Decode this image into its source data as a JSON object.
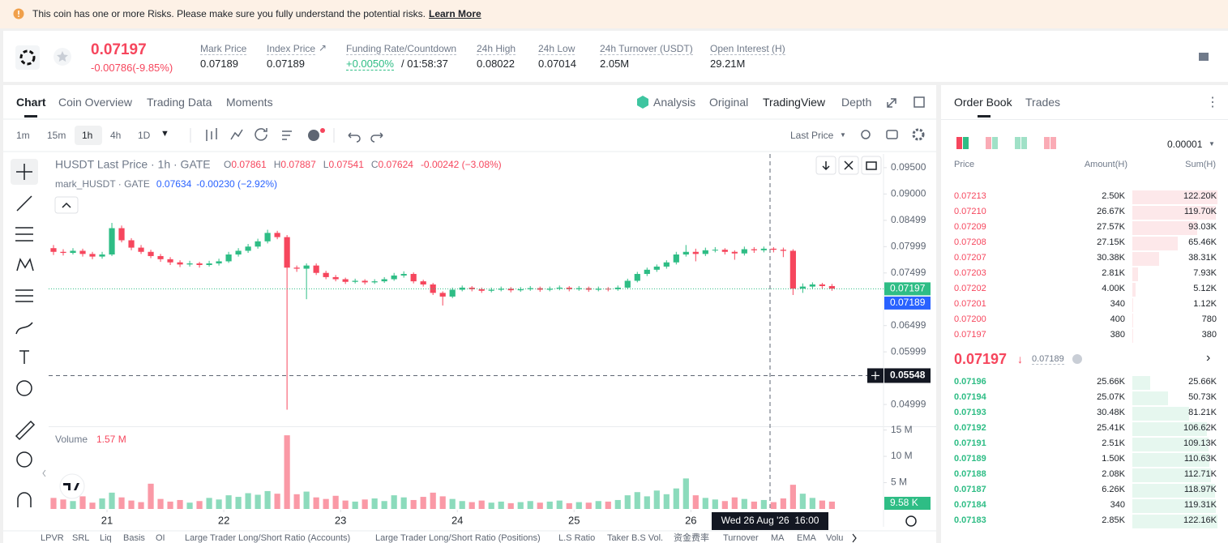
{
  "banner": {
    "text": "This coin has one or more Risks. Please make sure you fully understand the potential risks.",
    "link": "Learn More"
  },
  "ticker": {
    "price": "0.07197",
    "change": "-0.00786(-9.85%)",
    "stats": [
      {
        "label": "Mark Price",
        "value": "0.07189"
      },
      {
        "label": "Index Price",
        "value": "0.07189"
      },
      {
        "label": "Funding Rate/Countdown",
        "value": "+0.0050%",
        "extra": "/ 01:58:37"
      },
      {
        "label": "24h High",
        "value": "0.08022"
      },
      {
        "label": "24h Low",
        "value": "0.07014"
      },
      {
        "label": "24h Turnover (USDT)",
        "value": "2.05M"
      },
      {
        "label": "Open Interest (H)",
        "value": "29.21M"
      }
    ]
  },
  "tabs": {
    "left": [
      "Chart",
      "Coin Overview",
      "Trading Data",
      "Moments"
    ],
    "right": [
      "Analysis",
      "Original",
      "TradingView",
      "Depth"
    ]
  },
  "toolbar": {
    "intervals": [
      "1m",
      "15m",
      "1h",
      "4h",
      "1D"
    ],
    "price_source": "Last Price"
  },
  "chart_data": {
    "type": "candlestick",
    "title": "HUSDT Last Price · 1h · GATE",
    "ohlc_legend": [
      {
        "key": "O",
        "value": "0.07861"
      },
      {
        "key": "H",
        "value": "0.07887"
      },
      {
        "key": "L",
        "value": "0.07541"
      },
      {
        "key": "C",
        "value": "0.07624"
      }
    ],
    "legend_change": "-0.00242 (−3.08%)",
    "mark_line": {
      "name": "mark_HUSDT · GATE",
      "value": "0.07634",
      "change": "-0.00230 (−2.92%)"
    },
    "xlim": [
      -0.5,
      85.3
    ],
    "xticks": [
      {
        "value": 5.5,
        "label": "21"
      },
      {
        "value": 17.5,
        "label": "22"
      },
      {
        "value": 29.5,
        "label": "23"
      },
      {
        "value": 41.5,
        "label": "24"
      },
      {
        "value": 53.5,
        "label": "25"
      },
      {
        "value": 65.5,
        "label": "26"
      }
    ],
    "ylim": [
      0.046,
      0.0976
    ],
    "yticks": [
      {
        "value": 0.095,
        "label": "0.09500"
      },
      {
        "value": 0.09,
        "label": "0.09000"
      },
      {
        "value": 0.08499,
        "label": "0.08499"
      },
      {
        "value": 0.07999,
        "label": "0.07999"
      },
      {
        "value": 0.07499,
        "label": "0.07499"
      },
      {
        "value": 0.06499,
        "label": "0.06499"
      },
      {
        "value": 0.05999,
        "label": "0.05999"
      },
      {
        "value": 0.04999,
        "label": "0.04999"
      }
    ],
    "open": [
      0.0797,
      0.079,
      0.0788,
      0.0792,
      0.0786,
      0.0781,
      0.0785,
      0.0835,
      0.0812,
      0.0798,
      0.079,
      0.0782,
      0.0776,
      0.077,
      0.0766,
      0.0768,
      0.0765,
      0.0768,
      0.0772,
      0.0785,
      0.0792,
      0.08,
      0.081,
      0.0826,
      0.0818,
      0.076,
      0.0758,
      0.0764,
      0.075,
      0.0742,
      0.0738,
      0.0733,
      0.0735,
      0.0732,
      0.0734,
      0.0738,
      0.0745,
      0.0748,
      0.0734,
      0.0728,
      0.0712,
      0.0705,
      0.0718,
      0.0722,
      0.0719,
      0.0716,
      0.0718,
      0.072,
      0.0717,
      0.0719,
      0.0721,
      0.0718,
      0.072,
      0.0722,
      0.0719,
      0.0721,
      0.0718,
      0.072,
      0.0719,
      0.0722,
      0.0735,
      0.0748,
      0.0756,
      0.0762,
      0.077,
      0.0785,
      0.079,
      0.0786,
      0.0793,
      0.0794,
      0.079,
      0.0787,
      0.0795,
      0.0793,
      0.0796,
      0.0794,
      0.0792,
      0.072,
      0.0724,
      0.0728,
      0.0725
    ],
    "high": [
      0.0803,
      0.0795,
      0.0797,
      0.0796,
      0.079,
      0.079,
      0.0845,
      0.084,
      0.0816,
      0.0803,
      0.0794,
      0.0786,
      0.078,
      0.0774,
      0.0773,
      0.0771,
      0.0773,
      0.0777,
      0.079,
      0.0797,
      0.0805,
      0.0815,
      0.0832,
      0.083,
      0.0822,
      0.0764,
      0.0768,
      0.0768,
      0.0754,
      0.0746,
      0.0741,
      0.0739,
      0.0738,
      0.0738,
      0.0742,
      0.075,
      0.0753,
      0.0751,
      0.0737,
      0.0731,
      0.0715,
      0.0722,
      0.0726,
      0.0725,
      0.0722,
      0.0722,
      0.0724,
      0.0723,
      0.0723,
      0.0725,
      0.0724,
      0.0724,
      0.0726,
      0.0725,
      0.0725,
      0.0724,
      0.0724,
      0.0723,
      0.0726,
      0.0739,
      0.0752,
      0.076,
      0.0766,
      0.0774,
      0.079,
      0.0803,
      0.0796,
      0.0798,
      0.0799,
      0.0797,
      0.0793,
      0.08,
      0.0799,
      0.08,
      0.0799,
      0.0798,
      0.0795,
      0.073,
      0.0732,
      0.0731,
      0.0729
    ],
    "low": [
      0.0784,
      0.0783,
      0.0785,
      0.0781,
      0.0776,
      0.0777,
      0.0782,
      0.0808,
      0.0793,
      0.0786,
      0.0778,
      0.0771,
      0.0765,
      0.0761,
      0.0762,
      0.076,
      0.0762,
      0.0764,
      0.0769,
      0.0781,
      0.0788,
      0.0796,
      0.0806,
      0.0814,
      0.049,
      0.0752,
      0.07,
      0.0746,
      0.0738,
      0.0734,
      0.0729,
      0.073,
      0.0728,
      0.0729,
      0.0731,
      0.0735,
      0.0741,
      0.073,
      0.0724,
      0.0708,
      0.0688,
      0.0702,
      0.0715,
      0.0715,
      0.0712,
      0.0713,
      0.0715,
      0.0713,
      0.0714,
      0.0716,
      0.0714,
      0.0715,
      0.0717,
      0.0715,
      0.0716,
      0.0714,
      0.0715,
      0.0715,
      0.0716,
      0.0719,
      0.0732,
      0.0744,
      0.0752,
      0.0758,
      0.0766,
      0.0781,
      0.0772,
      0.0782,
      0.0789,
      0.0785,
      0.0775,
      0.0783,
      0.0788,
      0.0789,
      0.0789,
      0.078,
      0.0708,
      0.0712,
      0.072,
      0.072,
      0.0716
    ],
    "close": [
      0.079,
      0.0788,
      0.0792,
      0.0786,
      0.0781,
      0.0785,
      0.0835,
      0.0812,
      0.0798,
      0.079,
      0.0782,
      0.0776,
      0.077,
      0.0766,
      0.0768,
      0.0765,
      0.0768,
      0.0772,
      0.0785,
      0.0792,
      0.08,
      0.081,
      0.0826,
      0.0818,
      0.076,
      0.0758,
      0.0764,
      0.075,
      0.0742,
      0.0738,
      0.0733,
      0.0735,
      0.0732,
      0.0734,
      0.0738,
      0.0745,
      0.0748,
      0.0734,
      0.0728,
      0.0712,
      0.0705,
      0.0718,
      0.0722,
      0.0719,
      0.0716,
      0.0718,
      0.072,
      0.0717,
      0.0719,
      0.0721,
      0.0718,
      0.072,
      0.0722,
      0.0719,
      0.0721,
      0.0718,
      0.072,
      0.0719,
      0.0722,
      0.0735,
      0.0748,
      0.0756,
      0.0762,
      0.077,
      0.0785,
      0.079,
      0.0786,
      0.0793,
      0.0794,
      0.079,
      0.0787,
      0.0795,
      0.0793,
      0.0796,
      0.0794,
      0.0792,
      0.072,
      0.0724,
      0.0728,
      0.0725,
      0.072
    ],
    "up_color": "#2ebd85",
    "down_color": "#f6465d",
    "last_price": 0.07197,
    "mark_price": 0.07189,
    "crosshair": {
      "price": 0.05548,
      "time": "Wed 26 Aug '26  16:00"
    },
    "volume": {
      "title": "Volume",
      "current": "1.57 M",
      "ylim": [
        0,
        15.4
      ],
      "yticks": [
        {
          "value": 15,
          "label": "15 M"
        },
        {
          "value": 10,
          "label": "10 M"
        },
        {
          "value": 5,
          "label": "5 M"
        }
      ],
      "last": "9.58 K",
      "values": [
        2.1,
        1.8,
        1.5,
        2.4,
        1.2,
        2.0,
        3.1,
        2.2,
        1.6,
        1.3,
        4.8,
        1.9,
        1.4,
        1.7,
        1.2,
        1.5,
        2.1,
        1.8,
        2.6,
        2.3,
        3.0,
        2.7,
        3.4,
        2.9,
        14.0,
        2.8,
        3.3,
        2.2,
        1.9,
        2.5,
        1.6,
        1.4,
        1.8,
        2.0,
        1.5,
        2.6,
        2.2,
        1.7,
        2.3,
        3.1,
        2.4,
        1.9,
        1.5,
        1.3,
        1.6,
        1.2,
        1.4,
        1.1,
        1.3,
        1.5,
        1.2,
        1.4,
        1.6,
        1.1,
        1.3,
        1.2,
        1.5,
        1.4,
        1.7,
        2.6,
        3.2,
        2.4,
        3.5,
        2.8,
        3.9,
        5.8,
        2.6,
        2.1,
        1.8,
        1.5,
        2.2,
        1.9,
        1.4,
        1.7,
        1.3,
        2.0,
        4.6,
        2.9,
        2.1,
        1.6,
        1.4
      ]
    }
  },
  "indicators": [
    "LPVR",
    "SRL",
    "Liq",
    "Basis",
    "OI",
    "Large Trader Long/Short Ratio (Accounts)",
    "Large Trader Long/Short Ratio (Positions)",
    "L.S Ratio",
    "Taker B.S Vol.",
    "资金费率",
    "Turnover",
    "MA",
    "EMA",
    "Volu"
  ],
  "order_book": {
    "tabs": [
      "Order Book",
      "Trades"
    ],
    "precision": "0.00001",
    "headers": [
      "Price",
      "Amount(H)",
      "Sum(H)"
    ],
    "asks": [
      {
        "price": "0.07213",
        "amount": "2.50K",
        "sum": {
          "value": 122200,
          "label": "122.20K"
        }
      },
      {
        "price": "0.07210",
        "amount": "26.67K",
        "sum": {
          "value": 119700,
          "label": "119.70K"
        }
      },
      {
        "price": "0.07209",
        "amount": "27.57K",
        "sum": {
          "value": 93030,
          "label": "93.03K"
        }
      },
      {
        "price": "0.07208",
        "amount": "27.15K",
        "sum": {
          "value": 65460,
          "label": "65.46K"
        }
      },
      {
        "price": "0.07207",
        "amount": "30.38K",
        "sum": {
          "value": 38310,
          "label": "38.31K"
        }
      },
      {
        "price": "0.07203",
        "amount": "2.81K",
        "sum": {
          "value": 7930,
          "label": "7.93K"
        }
      },
      {
        "price": "0.07202",
        "amount": "4.00K",
        "sum": {
          "value": 5120,
          "label": "5.12K"
        }
      },
      {
        "price": "0.07201",
        "amount": "340",
        "sum": {
          "value": 1120,
          "label": "1.12K"
        }
      },
      {
        "price": "0.07200",
        "amount": "400",
        "sum": {
          "value": 780,
          "label": "780"
        }
      },
      {
        "price": "0.07197",
        "amount": "380",
        "sum": {
          "value": 380,
          "label": "380"
        }
      }
    ],
    "last_price": "0.07197",
    "mark_price": "0.07189",
    "bids": [
      {
        "price": "0.07196",
        "amount": "25.66K",
        "sum": {
          "value": 25660,
          "label": "25.66K"
        }
      },
      {
        "price": "0.07194",
        "amount": "25.07K",
        "sum": {
          "value": 50730,
          "label": "50.73K"
        }
      },
      {
        "price": "0.07193",
        "amount": "30.48K",
        "sum": {
          "value": 81210,
          "label": "81.21K"
        }
      },
      {
        "price": "0.07192",
        "amount": "25.41K",
        "sum": {
          "value": 106620,
          "label": "106.62K"
        }
      },
      {
        "price": "0.07191",
        "amount": "2.51K",
        "sum": {
          "value": 109130,
          "label": "109.13K"
        }
      },
      {
        "price": "0.07189",
        "amount": "1.50K",
        "sum": {
          "value": 110630,
          "label": "110.63K"
        }
      },
      {
        "price": "0.07188",
        "amount": "2.08K",
        "sum": {
          "value": 112710,
          "label": "112.71K"
        }
      },
      {
        "price": "0.07187",
        "amount": "6.26K",
        "sum": {
          "value": 118970,
          "label": "118.97K"
        }
      },
      {
        "price": "0.07184",
        "amount": "340",
        "sum": {
          "value": 119310,
          "label": "119.31K"
        }
      },
      {
        "price": "0.07183",
        "amount": "2.85K",
        "sum": {
          "value": 122160,
          "label": "122.16K"
        }
      }
    ]
  }
}
